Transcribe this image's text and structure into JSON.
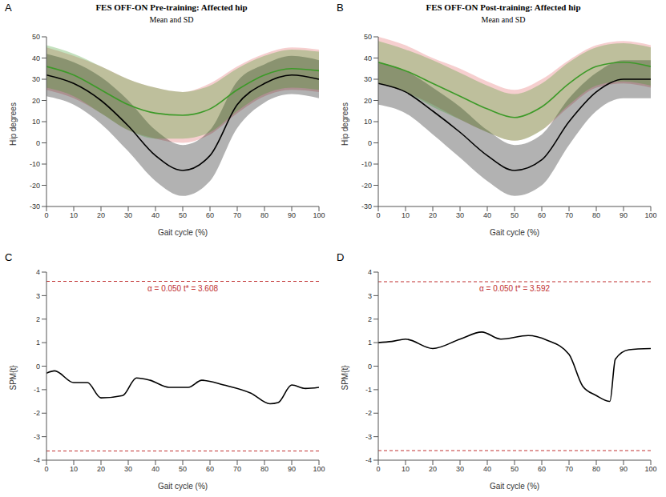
{
  "chart_data": [
    {
      "type": "line",
      "panel": "A",
      "title": "FES OFF-ON Pre-training: Affected hip",
      "subtitle": "Mean and SD",
      "x_label": "Gait cycle (%)",
      "y_label": "Hip degrees",
      "x": [
        0,
        10,
        20,
        30,
        40,
        50,
        60,
        70,
        80,
        90,
        100
      ],
      "xlim": [
        0,
        100
      ],
      "xticks": [
        0,
        10,
        20,
        30,
        40,
        50,
        60,
        70,
        80,
        90,
        100
      ],
      "ylim": [
        -30,
        50
      ],
      "yticks": [
        -30,
        -20,
        -10,
        0,
        10,
        20,
        30,
        40,
        50
      ],
      "grid": false,
      "series": [
        {
          "color": "#e06060",
          "line_style": "none",
          "values": [
            35,
            31,
            25,
            18,
            14,
            12,
            16,
            25,
            32,
            35,
            34
          ],
          "sd": [
            10,
            10,
            11,
            12,
            12,
            12,
            12,
            11,
            10,
            10,
            10
          ]
        },
        {
          "color": "#000000",
          "line_style": "solid",
          "values": [
            32,
            28,
            20,
            8,
            -6,
            -13,
            -6,
            18,
            28,
            32,
            30
          ],
          "sd": [
            10,
            10,
            11,
            12,
            12,
            12,
            12,
            11,
            9,
            9,
            9
          ]
        },
        {
          "color": "#3c9a28",
          "line_style": "solid",
          "values": [
            36,
            32,
            25,
            18,
            14,
            13,
            16,
            25,
            32,
            35,
            34
          ],
          "sd": [
            10,
            10,
            11,
            12,
            12,
            11,
            11,
            10,
            9,
            9,
            9
          ]
        }
      ]
    },
    {
      "type": "line",
      "panel": "B",
      "title": "FES OFF-ON Post-training: Affected hip",
      "subtitle": "Mean and SD",
      "x_label": "Gait cycle (%)",
      "y_label": "Hip degrees",
      "x": [
        0,
        10,
        20,
        30,
        40,
        50,
        60,
        70,
        80,
        90,
        100
      ],
      "xlim": [
        0,
        100
      ],
      "xticks": [
        0,
        10,
        20,
        30,
        40,
        50,
        60,
        70,
        80,
        90,
        100
      ],
      "ylim": [
        -30,
        50
      ],
      "yticks": [
        -30,
        -20,
        -10,
        0,
        10,
        20,
        30,
        40,
        50
      ],
      "grid": false,
      "series": [
        {
          "color": "#e06060",
          "line_style": "none",
          "values": [
            39,
            35,
            29,
            23,
            17,
            13,
            18,
            28,
            36,
            38,
            36
          ],
          "sd": [
            11,
            11,
            11,
            12,
            12,
            12,
            12,
            11,
            10,
            10,
            10
          ]
        },
        {
          "color": "#000000",
          "line_style": "solid",
          "values": [
            28,
            24,
            15,
            5,
            -6,
            -13,
            -8,
            10,
            24,
            30,
            30
          ],
          "sd": [
            10,
            10,
            11,
            12,
            12,
            12,
            12,
            11,
            9,
            9,
            9
          ]
        },
        {
          "color": "#3c9a28",
          "line_style": "solid",
          "values": [
            38,
            34,
            28,
            22,
            16,
            12,
            17,
            28,
            36,
            38,
            36
          ],
          "sd": [
            10,
            10,
            11,
            11,
            11,
            11,
            11,
            10,
            9,
            9,
            9
          ]
        }
      ]
    },
    {
      "type": "line",
      "panel": "C",
      "x_label": "Gait cycle (%)",
      "y_label": "SPM{t}",
      "x": [
        0,
        3,
        10,
        15,
        20,
        28,
        33,
        38,
        45,
        52,
        57,
        65,
        75,
        82,
        85,
        90,
        95,
        100
      ],
      "xlim": [
        0,
        100
      ],
      "xticks": [
        0,
        10,
        20,
        30,
        40,
        50,
        60,
        70,
        80,
        90,
        100
      ],
      "ylim": [
        -4,
        4
      ],
      "yticks": [
        -4,
        -3,
        -2,
        -1,
        0,
        1,
        2,
        3,
        4
      ],
      "grid": false,
      "threshold": 3.608,
      "annotation": "α = 0.050   t* = 3.608",
      "series": [
        {
          "color": "#000000",
          "line_style": "solid",
          "values": [
            -0.3,
            -0.2,
            -0.7,
            -0.7,
            -1.35,
            -1.25,
            -0.5,
            -0.6,
            -0.9,
            -0.9,
            -0.6,
            -0.8,
            -1.15,
            -1.6,
            -1.55,
            -0.8,
            -0.95,
            -0.9
          ]
        }
      ]
    },
    {
      "type": "line",
      "panel": "D",
      "x_label": "Gait cycle (%)",
      "y_label": "SPM{t}",
      "x": [
        0,
        5,
        10,
        20,
        30,
        38,
        45,
        55,
        62,
        70,
        75,
        80,
        85,
        87,
        92,
        100
      ],
      "xlim": [
        0,
        100
      ],
      "xticks": [
        0,
        10,
        20,
        30,
        40,
        50,
        60,
        70,
        80,
        90,
        100
      ],
      "ylim": [
        -4,
        4
      ],
      "yticks": [
        -4,
        -3,
        -2,
        -1,
        0,
        1,
        2,
        3,
        4
      ],
      "grid": false,
      "threshold": 3.592,
      "annotation": "α = 0.050   t* = 3.592",
      "series": [
        {
          "color": "#000000",
          "line_style": "solid",
          "values": [
            1.0,
            1.05,
            1.15,
            0.75,
            1.15,
            1.45,
            1.15,
            1.3,
            1.1,
            0.5,
            -0.85,
            -1.25,
            -1.5,
            0.3,
            0.7,
            0.75
          ]
        }
      ]
    }
  ]
}
